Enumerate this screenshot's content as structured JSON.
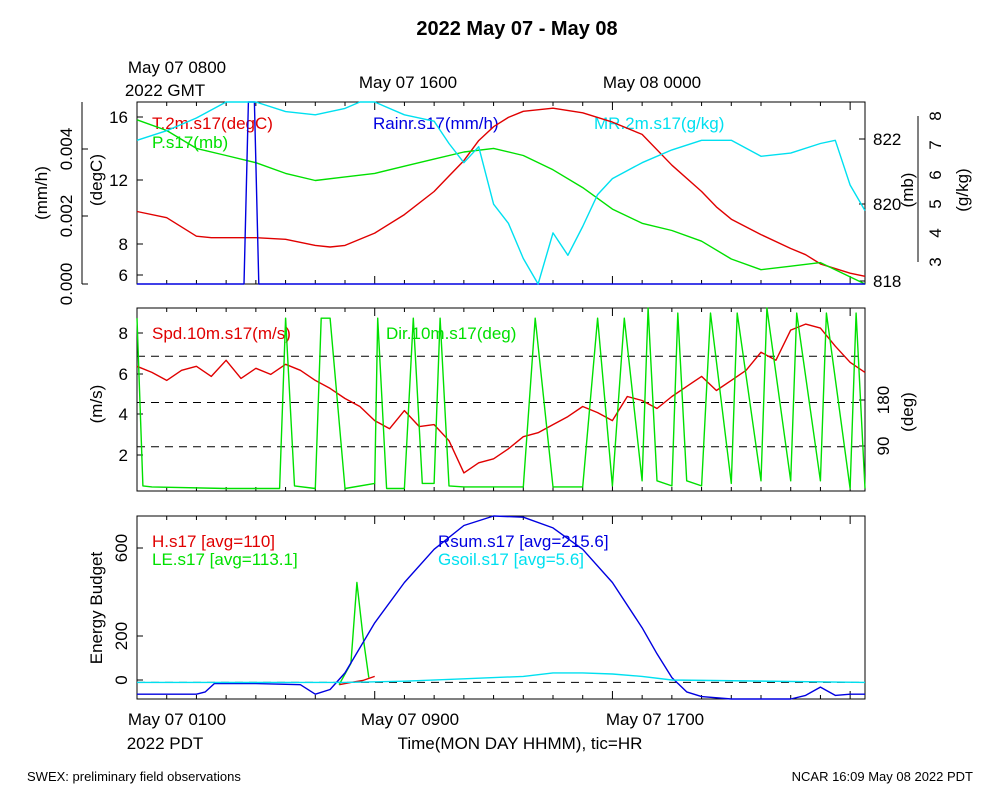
{
  "page": {
    "title": "2022 May 07 - May 08",
    "footer_left": "SWEX: preliminary field observations",
    "footer_right": "NCAR 16:09 May 08 2022 PDT"
  },
  "top_axis": {
    "labels": [
      "May 07 0800",
      "May 07 1600",
      "May 08 0000"
    ],
    "sublabel": "2022 GMT"
  },
  "bottom_axis": {
    "labels": [
      "May 07 0100",
      "May 07 0900",
      "May 07 1700"
    ],
    "sublabel": "2022 PDT",
    "title": "Time(MON DAY HHMM), tic=HR"
  },
  "colors": {
    "red": "#e00000",
    "green": "#00e000",
    "blue": "#0000e0",
    "cyan": "#00e0f0"
  },
  "chart_data": [
    {
      "type": "line",
      "x_unit": "hours since May 07 0100 PDT",
      "xlim": [
        0,
        24.5
      ],
      "axes": [
        {
          "label": "(mm/h)",
          "side": "left",
          "ticks": [
            "0.000",
            "0.002",
            "0.004"
          ],
          "ylim": [
            0,
            0.0054
          ]
        },
        {
          "label": "(degC)",
          "side": "left",
          "ticks": [
            "6",
            "8",
            "12",
            "16"
          ],
          "ylim": [
            5.5,
            17.3
          ]
        },
        {
          "label": "(mb)",
          "side": "right",
          "ticks": [
            "818",
            "820",
            "822"
          ],
          "ylim": [
            817.9,
            823.0
          ]
        },
        {
          "label": "(g/kg)",
          "side": "right",
          "ticks": [
            "3",
            "4",
            "5",
            "6",
            "7",
            "8"
          ],
          "ylim": [
            2.7,
            8.4
          ]
        }
      ],
      "legend": [
        "T.2m.s17(degC)",
        "P.s17(mb)",
        "Rainr.s17(mm/h)",
        "MR.2m.s17(g/kg)"
      ],
      "series": [
        {
          "name": "T.2m.s17(degC)",
          "color": "red",
          "axis": 1,
          "x": [
            0,
            1,
            2,
            2.5,
            3,
            4,
            5,
            6,
            6.5,
            7,
            8,
            9,
            10,
            10.5,
            11,
            11.5,
            12,
            12.5,
            13,
            14,
            15,
            16,
            17,
            18,
            19,
            19.5,
            20,
            21,
            22,
            22.5,
            23,
            24,
            24.5
          ],
          "y": [
            10.2,
            9.8,
            8.6,
            8.5,
            8.5,
            8.5,
            8.4,
            8.0,
            7.9,
            8.0,
            8.8,
            10.0,
            11.5,
            12.5,
            13.5,
            14.8,
            15.7,
            16.3,
            16.7,
            16.9,
            16.6,
            16.0,
            15.2,
            13.2,
            11.5,
            10.5,
            9.7,
            8.7,
            7.8,
            7.4,
            6.8,
            6.2,
            6.0
          ]
        },
        {
          "name": "P.s17(mb)",
          "color": "green",
          "axis": 2,
          "x": [
            0,
            1,
            2,
            3,
            4,
            5,
            6,
            7,
            8,
            9,
            10,
            11,
            12,
            13,
            14,
            15,
            16,
            17,
            18,
            19,
            20,
            21,
            22,
            23,
            24,
            24.5
          ],
          "y": [
            822.5,
            822.2,
            821.7,
            821.5,
            821.3,
            821.0,
            820.8,
            820.9,
            821.0,
            821.2,
            821.4,
            821.6,
            821.7,
            821.5,
            821.1,
            820.6,
            820.0,
            819.6,
            819.4,
            819.1,
            818.6,
            818.3,
            818.4,
            818.5,
            818.1,
            817.9
          ]
        },
        {
          "name": "Rainr.s17(mm/h)",
          "color": "blue",
          "axis": 0,
          "x": [
            0,
            3.6,
            3.75,
            3.95,
            4.1,
            24.5
          ],
          "y": [
            0,
            0,
            0.0054,
            0.0054,
            0,
            0
          ]
        },
        {
          "name": "MR.2m.s17(g/kg)",
          "color": "cyan",
          "axis": 3,
          "x": [
            0,
            1,
            2,
            3,
            4,
            5,
            6,
            7,
            7.5,
            8,
            9,
            10,
            10.5,
            11,
            11.5,
            12,
            12.5,
            13,
            13.5,
            14,
            14.5,
            15,
            15.5,
            16,
            17,
            18,
            19,
            20,
            21,
            22,
            23,
            23.5,
            24,
            24.5
          ],
          "y": [
            7.2,
            7.5,
            7.9,
            8.4,
            8.4,
            8.1,
            8.0,
            8.2,
            8.4,
            8.4,
            8.0,
            7.8,
            7.1,
            6.5,
            7.0,
            5.2,
            4.6,
            3.5,
            2.7,
            4.3,
            3.6,
            4.5,
            5.5,
            6.0,
            6.5,
            6.9,
            7.2,
            7.2,
            6.7,
            6.8,
            7.1,
            7.2,
            5.8,
            5.0
          ]
        }
      ]
    },
    {
      "type": "line",
      "x_unit": "hours since May 07 0100 PDT",
      "xlim": [
        0,
        24.5
      ],
      "axes": [
        {
          "label": "(m/s)",
          "side": "left",
          "ticks": [
            "2",
            "4",
            "6",
            "8"
          ],
          "ylim": [
            0.3,
            9.4
          ]
        },
        {
          "label": "(deg)",
          "side": "right",
          "ticks": [
            "90",
            "180"
          ],
          "ylim": [
            0,
            360
          ]
        }
      ],
      "reference_lines_ms": [
        2.5,
        4.7,
        7.0
      ],
      "legend": [
        "Spd.10m.s17(m/s)",
        "Dir.10m.s17(deg)"
      ],
      "series": [
        {
          "name": "Spd.10m.s17(m/s)",
          "color": "red",
          "axis": 0,
          "x": [
            0,
            0.5,
            1,
            1.5,
            2,
            2.5,
            3,
            3.5,
            4,
            4.5,
            5,
            5.5,
            6,
            6.5,
            7,
            7.5,
            8,
            8.5,
            9,
            9.5,
            10,
            10.5,
            11,
            11.5,
            12,
            12.5,
            13,
            13.5,
            14,
            14.5,
            15,
            15.5,
            16,
            16.5,
            17,
            17.5,
            18,
            18.5,
            19,
            19.5,
            20,
            20.5,
            21,
            21.5,
            22,
            22.5,
            23,
            23.5,
            24,
            24.5
          ],
          "y": [
            6.5,
            6.2,
            5.8,
            6.3,
            6.5,
            6.0,
            6.8,
            5.9,
            6.4,
            6.1,
            6.6,
            6.3,
            5.8,
            5.4,
            4.9,
            4.5,
            3.8,
            3.4,
            4.3,
            3.5,
            3.6,
            2.8,
            1.2,
            1.7,
            1.9,
            2.4,
            3.0,
            3.2,
            3.6,
            4.0,
            4.5,
            4.2,
            3.8,
            5.0,
            4.8,
            4.4,
            5.0,
            5.5,
            6.0,
            5.3,
            5.8,
            6.3,
            7.2,
            6.8,
            8.3,
            8.6,
            8.4,
            7.5,
            6.7,
            6.2
          ]
        },
        {
          "name": "Dir.10m.s17(deg)",
          "color": "green",
          "axis": 1,
          "x": [
            0,
            0.2,
            0.5,
            3,
            4.8,
            5,
            5.3,
            6,
            6.2,
            6.5,
            7,
            8,
            8.1,
            8.4,
            9,
            9.3,
            9.6,
            10,
            10.2,
            10.5,
            11,
            12,
            13,
            13.4,
            14,
            15,
            15.5,
            16,
            16.4,
            17,
            17.2,
            17.5,
            18,
            18.2,
            18.5,
            19,
            19.3,
            20,
            20.2,
            21,
            21.2,
            22,
            22.2,
            23,
            23.2,
            24,
            24.2,
            24.5
          ],
          "y": [
            340,
            10,
            8,
            5,
            5,
            340,
            10,
            5,
            340,
            340,
            5,
            15,
            340,
            5,
            5,
            340,
            15,
            15,
            340,
            10,
            8,
            8,
            8,
            340,
            8,
            8,
            340,
            10,
            340,
            20,
            360,
            20,
            10,
            350,
            20,
            10,
            350,
            15,
            350,
            20,
            360,
            20,
            350,
            20,
            350,
            5,
            350,
            5
          ]
        }
      ]
    },
    {
      "type": "line",
      "x_unit": "hours since May 07 0100 PDT",
      "xlim": [
        0,
        24.5
      ],
      "axes": [
        {
          "label": "Energy Budget",
          "side": "left",
          "ticks": [
            "0",
            "200",
            "600"
          ],
          "ylim": [
            -70,
            700
          ]
        }
      ],
      "zero_line": 0,
      "legend": [
        "H.s17 [avg=110]",
        "LE.s17 [avg=113.1]",
        "Rsum.s17 [avg=215.6]",
        "Gsoil.s17 [avg=5.6]"
      ],
      "series": [
        {
          "name": "H.s17 [avg=110]",
          "color": "red",
          "x": [
            6.8,
            7.2,
            7.6,
            8.0
          ],
          "y": [
            -10,
            0,
            8,
            25
          ]
        },
        {
          "name": "LE.s17 [avg=113.1]",
          "color": "green",
          "x": [
            6.8,
            7.2,
            7.4,
            7.6,
            7.8
          ],
          "y": [
            -10,
            80,
            420,
            200,
            20
          ]
        },
        {
          "name": "Rsum.s17 [avg=215.6]",
          "color": "blue",
          "x": [
            0,
            2,
            2.3,
            2.6,
            4,
            5.5,
            6,
            6.5,
            7,
            8,
            9,
            10,
            11,
            12,
            13,
            14,
            15,
            16,
            17,
            17.5,
            18,
            18.5,
            19,
            20,
            21,
            22,
            22.5,
            23,
            23.5,
            24,
            24.5
          ],
          "y": [
            -50,
            -50,
            -40,
            -5,
            -5,
            -10,
            -50,
            -30,
            40,
            250,
            420,
            560,
            660,
            700,
            695,
            650,
            560,
            420,
            230,
            120,
            20,
            -40,
            -60,
            -70,
            -70,
            -70,
            -55,
            -20,
            -55,
            -50,
            -50
          ]
        },
        {
          "name": "Gsoil.s17 [avg=5.6]",
          "color": "cyan",
          "x": [
            0,
            7,
            9,
            11,
            13,
            14,
            15,
            16,
            17,
            18,
            24.5
          ],
          "y": [
            0,
            0,
            5,
            15,
            25,
            40,
            40,
            35,
            25,
            10,
            0
          ]
        }
      ]
    }
  ]
}
